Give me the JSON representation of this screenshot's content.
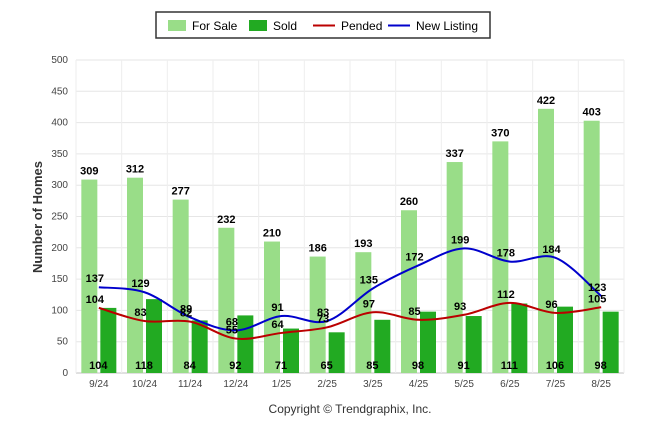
{
  "chart_data": {
    "type": "bar",
    "categories": [
      "9/24",
      "10/24",
      "11/24",
      "12/24",
      "1/25",
      "2/25",
      "3/25",
      "4/25",
      "5/25",
      "6/25",
      "7/25",
      "8/25"
    ],
    "series": [
      {
        "name": "For Sale",
        "kind": "bar",
        "color": "#99dd88",
        "values": [
          309,
          312,
          277,
          232,
          210,
          186,
          193,
          260,
          337,
          370,
          422,
          403
        ]
      },
      {
        "name": "Sold",
        "kind": "bar",
        "color": "#22aa22",
        "values": [
          104,
          118,
          84,
          92,
          71,
          65,
          85,
          98,
          91,
          111,
          106,
          98
        ]
      },
      {
        "name": "Pended",
        "kind": "line",
        "color": "#bb0000",
        "values": [
          104,
          83,
          82,
          55,
          64,
          73,
          97,
          85,
          93,
          112,
          96,
          105
        ]
      },
      {
        "name": "New Listing",
        "kind": "line",
        "color": "#0000cc",
        "values": [
          137,
          129,
          89,
          68,
          91,
          83,
          135,
          172,
          199,
          178,
          184,
          123
        ]
      }
    ],
    "xlabel": "",
    "ylabel": "Number of Homes",
    "ylim": [
      0,
      500
    ],
    "yticks": [
      0,
      50,
      100,
      150,
      200,
      250,
      300,
      350,
      400,
      450,
      500
    ],
    "grid": true,
    "legend_position": "top-center"
  },
  "credit": "Copyright © Trendgraphix, Inc."
}
